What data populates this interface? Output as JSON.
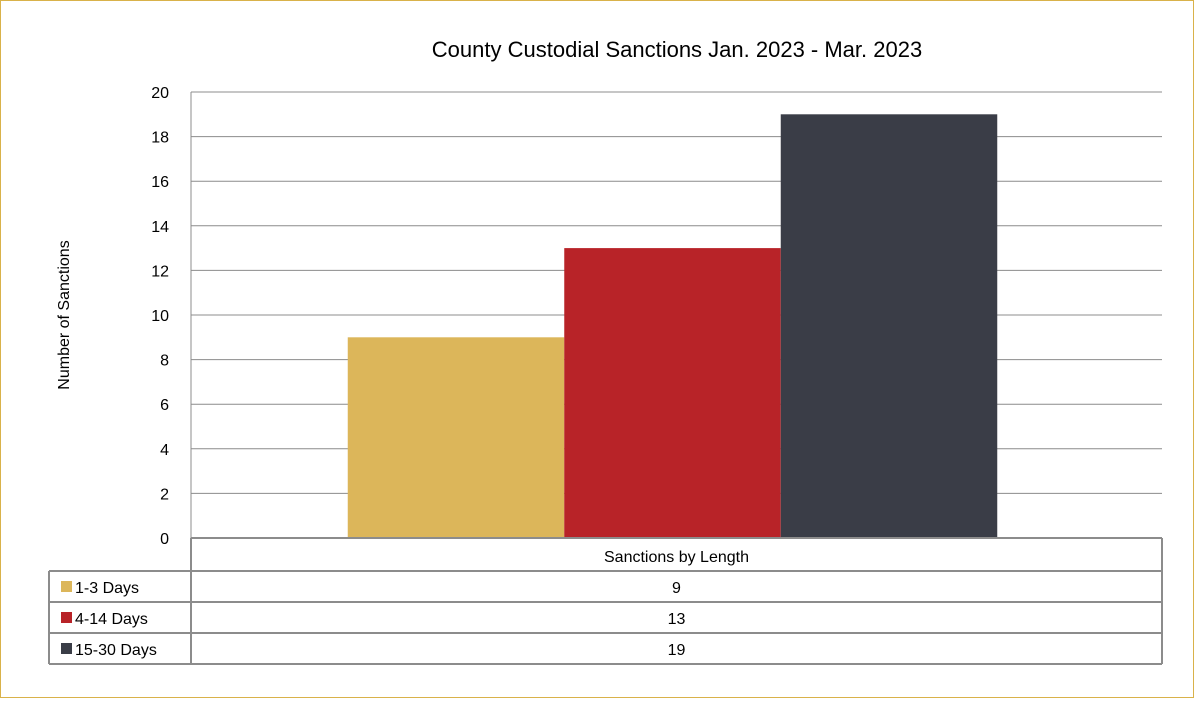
{
  "chart_data": {
    "type": "bar",
    "title": "County Custodial Sanctions Jan. 2023 - Mar. 2023",
    "xlabel": "Sanctions by Length",
    "ylabel": "Number of Sanctions",
    "ylim": [
      0,
      20
    ],
    "yticks": [
      "0",
      "2",
      "4",
      "6",
      "8",
      "10",
      "12",
      "14",
      "16",
      "18",
      "20"
    ],
    "grid": true,
    "categories": [
      "Sanctions by Length"
    ],
    "series": [
      {
        "name": "1-3 Days",
        "values": [
          9
        ],
        "color": "#dcb65a"
      },
      {
        "name": "4-14 Days",
        "values": [
          13
        ],
        "color": "#b82328"
      },
      {
        "name": "15-30 Days",
        "values": [
          19
        ],
        "color": "#3a3d47"
      }
    ],
    "data_table": {
      "header": "Sanctions by Length",
      "rows": [
        {
          "label": "1-3 Days",
          "value": "9"
        },
        {
          "label": "4-14 Days",
          "value": "13"
        },
        {
          "label": "15-30 Days",
          "value": "19"
        }
      ]
    }
  }
}
